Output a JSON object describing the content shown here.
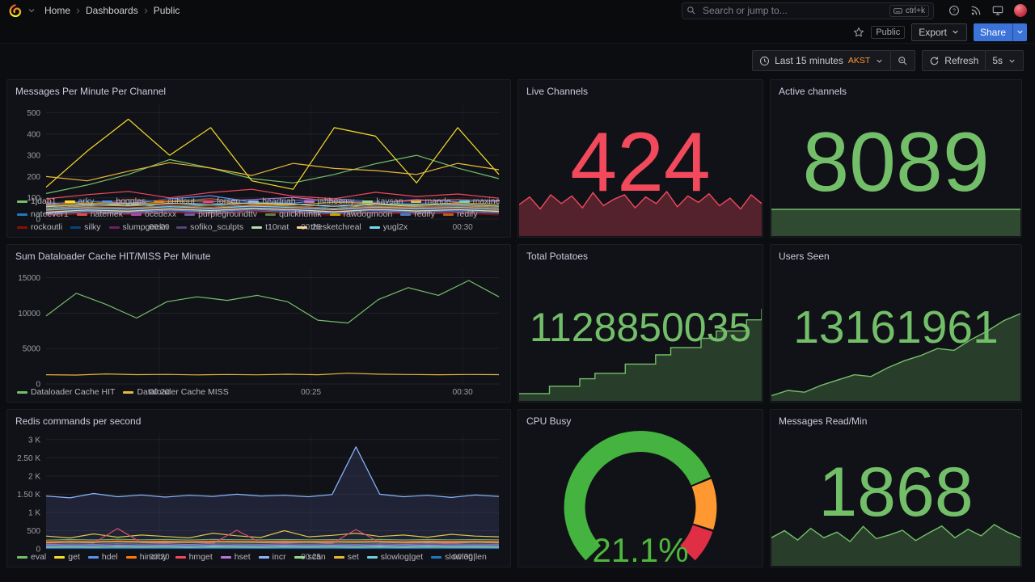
{
  "nav": {
    "breadcrumb": [
      "Home",
      "Dashboards",
      "Public"
    ],
    "search_placeholder": "Search or jump to...",
    "search_shortcut": "ctrl+k"
  },
  "subnav": {
    "tag": "Public",
    "export_label": "Export",
    "share_label": "Share"
  },
  "toolbar": {
    "time_range": "Last 15 minutes",
    "timezone": "AKST",
    "refresh_label": "Refresh",
    "interval": "5s"
  },
  "colors": {
    "stat_red": "#F2495C",
    "stat_green": "#73BF69",
    "gauge_green": "#4EB73C",
    "share_blue": "#3b73d9"
  },
  "chart_data": [
    {
      "id": "messages-per-minute",
      "type": "line",
      "title": "Messages Per Minute Per Channel",
      "ylim": [
        0,
        540
      ],
      "legend": "bottom",
      "y_ticks": [
        {
          "v": 0,
          "label": "0"
        },
        {
          "v": 100,
          "label": "100"
        },
        {
          "v": 200,
          "label": "200"
        },
        {
          "v": 300,
          "label": "300"
        },
        {
          "v": 400,
          "label": "400"
        },
        {
          "v": 500,
          "label": "500"
        }
      ],
      "x_ticks": [
        {
          "pos": 0.25,
          "label": "00:20"
        },
        {
          "pos": 0.585,
          "label": "00:25"
        },
        {
          "pos": 0.92,
          "label": "00:30"
        }
      ],
      "series": [
        {
          "name": "1jdab1",
          "color": "#73BF69",
          "values": [
            120,
            160,
            210,
            280,
            240,
            190,
            170,
            210,
            260,
            300,
            240,
            190
          ]
        },
        {
          "name": "arky",
          "color": "#FADE2A",
          "values": [
            150,
            320,
            470,
            300,
            430,
            180,
            140,
            430,
            390,
            170,
            430,
            210
          ]
        },
        {
          "name": "boggles",
          "color": "#5794F2",
          "values": [
            60,
            85,
            70,
            95,
            110,
            80,
            75,
            95,
            82,
            70,
            92,
            84
          ]
        },
        {
          "name": "cuhlout",
          "color": "#FF780A",
          "values": [
            40,
            55,
            45,
            62,
            50,
            66,
            54,
            44,
            60,
            50,
            56,
            46
          ]
        },
        {
          "name": "forsen",
          "color": "#F2495C",
          "values": [
            95,
            115,
            130,
            100,
            125,
            140,
            108,
            96,
            126,
            106,
            118,
            98
          ]
        },
        {
          "name": "heartriah",
          "color": "#8AB8FF",
          "values": [
            30,
            42,
            35,
            46,
            52,
            40,
            34,
            46,
            40,
            31,
            44,
            37
          ]
        },
        {
          "name": "jahheemy",
          "color": "#B877D9",
          "values": [
            70,
            86,
            74,
            96,
            82,
            92,
            102,
            84,
            76,
            92,
            80,
            88
          ]
        },
        {
          "name": "kaysan",
          "color": "#96D98D",
          "values": [
            50,
            62,
            72,
            54,
            66,
            76,
            60,
            50,
            70,
            58,
            64,
            54
          ]
        },
        {
          "name": "mande",
          "color": "#EAB839",
          "values": [
            200,
            180,
            225,
            265,
            240,
            205,
            262,
            238,
            228,
            210,
            262,
            232
          ]
        },
        {
          "name": "maxine",
          "color": "#6ED0E0",
          "values": [
            25,
            36,
            30,
            41,
            34,
            46,
            38,
            29,
            43,
            34,
            40,
            32
          ]
        },
        {
          "name": "nateever1",
          "color": "#1F78C1",
          "values": [
            45,
            56,
            50,
            61,
            66,
            54,
            49,
            61,
            52,
            47,
            59,
            53
          ]
        },
        {
          "name": "natemek",
          "color": "#E24D42",
          "values": [
            80,
            70,
            92,
            84,
            96,
            74,
            88,
            94,
            78,
            86,
            92,
            81
          ]
        },
        {
          "name": "ocedexx",
          "color": "#BA43A9",
          "values": [
            20,
            31,
            25,
            36,
            28,
            39,
            31,
            24,
            34,
            27,
            33,
            26
          ]
        },
        {
          "name": "purplegroundttv",
          "color": "#705DA0",
          "values": [
            55,
            66,
            60,
            71,
            76,
            61,
            57,
            69,
            62,
            56,
            67,
            59
          ]
        },
        {
          "name": "quickhuntik",
          "color": "#508642",
          "values": [
            35,
            46,
            40,
            51,
            44,
            53,
            47,
            37,
            49,
            41,
            48,
            39
          ]
        },
        {
          "name": "rawdogmoon",
          "color": "#CCA300",
          "values": [
            65,
            76,
            70,
            81,
            86,
            71,
            67,
            79,
            72,
            66,
            77,
            69
          ]
        },
        {
          "name": "redify",
          "color": "#447EBC",
          "values": [
            28,
            39,
            33,
            44,
            36,
            47,
            40,
            30,
            42,
            34,
            40,
            33
          ]
        },
        {
          "name": "redify",
          "color": "#C15C17",
          "values": [
            48,
            59,
            53,
            64,
            56,
            67,
            60,
            50,
            62,
            54,
            61,
            51
          ]
        },
        {
          "name": "rockoutli",
          "color": "#890F02",
          "values": [
            15,
            26,
            20,
            31,
            22,
            33,
            27,
            17,
            29,
            22,
            28,
            19
          ]
        },
        {
          "name": "silky",
          "color": "#0A437C",
          "values": [
            75,
            86,
            80,
            93,
            88,
            77,
            85,
            91,
            81,
            74,
            87,
            79
          ]
        },
        {
          "name": "slumpgeekn",
          "color": "#6D1F62",
          "values": [
            38,
            49,
            43,
            54,
            46,
            57,
            50,
            40,
            52,
            44,
            51,
            43
          ]
        },
        {
          "name": "sofiko_sculpts",
          "color": "#584477",
          "values": [
            22,
            33,
            27,
            38,
            30,
            41,
            34,
            24,
            36,
            28,
            35,
            27
          ]
        },
        {
          "name": "t10nat",
          "color": "#B7DBAB",
          "values": [
            58,
            69,
            63,
            74,
            66,
            77,
            70,
            60,
            72,
            64,
            71,
            61
          ]
        },
        {
          "name": "thesketchreal",
          "color": "#F4D598",
          "values": [
            32,
            43,
            37,
            48,
            40,
            51,
            44,
            34,
            46,
            38,
            45,
            36
          ]
        },
        {
          "name": "yugl2x",
          "color": "#70DBED",
          "values": [
            42,
            53,
            47,
            58,
            50,
            61,
            54,
            44,
            56,
            48,
            55,
            45
          ]
        }
      ]
    },
    {
      "id": "live-channels",
      "type": "stat",
      "title": "Live Channels",
      "value": "424",
      "color": "#F2495C",
      "sparkline": {
        "values": [
          58,
          72,
          50,
          76,
          60,
          74,
          52,
          80,
          56,
          68,
          76,
          52,
          72,
          60,
          82,
          54,
          74,
          62,
          78,
          56,
          70,
          50,
          76,
          60
        ],
        "line": "#F2495C",
        "fill": "rgba(242,73,92,0.30)",
        "height_frac": 0.3
      }
    },
    {
      "id": "active-channels",
      "type": "stat",
      "title": "Active channels",
      "value": "8089",
      "color": "#73BF69",
      "sparkline": {
        "values": [
          1,
          1,
          1,
          1,
          1,
          1,
          1,
          1,
          1,
          1,
          1,
          1
        ],
        "line": "#73BF69",
        "fill": "rgba(115,191,105,0.32)",
        "height_frac": 0.19
      }
    },
    {
      "id": "dataloader-cache",
      "type": "line",
      "title": "Sum Dataloader Cache HIT/MISS Per Minute",
      "ylim": [
        0,
        16200
      ],
      "legend": "bottom",
      "y_ticks": [
        {
          "v": 0,
          "label": "0"
        },
        {
          "v": 5000,
          "label": "5000"
        },
        {
          "v": 10000,
          "label": "10000"
        },
        {
          "v": 15000,
          "label": "15000"
        }
      ],
      "x_ticks": [
        {
          "pos": 0.25,
          "label": "00:20"
        },
        {
          "pos": 0.585,
          "label": "00:25"
        },
        {
          "pos": 0.92,
          "label": "00:30"
        }
      ],
      "series": [
        {
          "name": "Dataloader Cache HIT",
          "color": "#73BF69",
          "values": [
            9600,
            12800,
            11200,
            9300,
            11600,
            12300,
            11800,
            12500,
            11600,
            9000,
            8600,
            11900,
            13600,
            12500,
            14600,
            12300
          ]
        },
        {
          "name": "Dataloader Cache MISS",
          "color": "#EAB839",
          "values": [
            1300,
            1260,
            1420,
            1310,
            1350,
            1280,
            1330,
            1290,
            1370,
            1300,
            1520,
            1380,
            1330,
            1300,
            1340,
            1310
          ]
        }
      ]
    },
    {
      "id": "total-potatoes",
      "type": "stat",
      "title": "Total Potatoes",
      "value": "1128850035",
      "color": "#73BF69",
      "sparkline": {
        "values": [
          8,
          8,
          16,
          16,
          24,
          30,
          30,
          40,
          40,
          50,
          58,
          58,
          68,
          76,
          76,
          88,
          100
        ],
        "step": true,
        "line": "#73BF69",
        "fill": "rgba(115,191,105,0.25)",
        "height_frac": 0.6
      }
    },
    {
      "id": "users-seen",
      "type": "stat",
      "title": "Users Seen",
      "value": "13161961",
      "color": "#73BF69",
      "sparkline": {
        "values": [
          6,
          12,
          10,
          18,
          24,
          30,
          28,
          38,
          46,
          52,
          60,
          58,
          70,
          80,
          92,
          100
        ],
        "line": "#73BF69",
        "fill": "rgba(115,191,105,0.25)",
        "height_frac": 0.57
      }
    },
    {
      "id": "redis-commands",
      "type": "line",
      "title": "Redis commands per second",
      "ylim": [
        0,
        3150
      ],
      "legend": "bottom",
      "y_ticks": [
        {
          "v": 0,
          "label": "0"
        },
        {
          "v": 500,
          "label": "500"
        },
        {
          "v": 1000,
          "label": "1 K"
        },
        {
          "v": 1500,
          "label": "1.50 K"
        },
        {
          "v": 2000,
          "label": "2 K"
        },
        {
          "v": 2500,
          "label": "2.50 K"
        },
        {
          "v": 3000,
          "label": "3 K"
        }
      ],
      "x_ticks": [
        {
          "pos": 0.25,
          "label": "00:20"
        },
        {
          "pos": 0.585,
          "label": "00:25"
        },
        {
          "pos": 0.92,
          "label": "00:30"
        }
      ],
      "series": [
        {
          "name": "eval",
          "color": "#73BF69",
          "values": [
            240,
            255,
            245,
            262,
            248,
            258,
            242,
            260,
            250,
            246,
            256,
            248,
            252,
            246,
            258,
            244,
            256,
            248,
            252,
            246
          ]
        },
        {
          "name": "get",
          "color": "#FADE2A",
          "values": [
            350,
            300,
            410,
            320,
            380,
            340,
            300,
            430,
            360,
            310,
            500,
            330,
            370,
            430,
            340,
            380,
            320,
            400,
            350,
            330
          ]
        },
        {
          "name": "hdel",
          "color": "#5794F2",
          "values": [
            120,
            132,
            125,
            140,
            128,
            136,
            122,
            138,
            130,
            126,
            134,
            128,
            132,
            126,
            138,
            124,
            136,
            128,
            130,
            126
          ]
        },
        {
          "name": "hincrby",
          "color": "#FF780A",
          "values": [
            200,
            212,
            205,
            220,
            208,
            216,
            202,
            218,
            210,
            206,
            214,
            208,
            212,
            206,
            218,
            204,
            216,
            208,
            210,
            206
          ]
        },
        {
          "name": "hmget",
          "color": "#F2495C",
          "values": [
            150,
            180,
            160,
            560,
            170,
            160,
            180,
            150,
            510,
            170,
            160,
            180,
            150,
            530,
            180,
            160,
            170,
            150,
            180,
            160
          ]
        },
        {
          "name": "hset",
          "color": "#B877D9",
          "values": [
            90,
            96,
            92,
            102,
            94,
            98,
            90,
            102,
            96,
            92,
            100,
            94,
            98,
            92,
            102,
            90,
            100,
            94,
            96,
            92
          ]
        },
        {
          "name": "incr",
          "color": "#8AB8FF",
          "fill": "rgba(93,102,173,0.20)",
          "values": [
            1450,
            1400,
            1520,
            1430,
            1480,
            1420,
            1470,
            1440,
            1500,
            1450,
            1470,
            1430,
            1490,
            2800,
            1500,
            1430,
            1470,
            1410,
            1480,
            1440
          ]
        },
        {
          "name": "scan",
          "color": "#96D98D",
          "values": [
            60,
            66,
            62,
            70,
            64,
            68,
            60,
            72,
            66,
            62,
            70,
            64,
            68,
            62,
            72,
            60,
            70,
            64,
            66,
            62
          ]
        },
        {
          "name": "set",
          "color": "#EAB839",
          "values": [
            170,
            182,
            175,
            190,
            178,
            186,
            172,
            188,
            180,
            176,
            184,
            178,
            182,
            176,
            188,
            174,
            186,
            178,
            180,
            176
          ]
        },
        {
          "name": "slowlog|get",
          "color": "#6ED0E0",
          "values": [
            30,
            36,
            32,
            40,
            34,
            38,
            30,
            42,
            36,
            32,
            40,
            34,
            38,
            32,
            42,
            30,
            40,
            34,
            36,
            32
          ]
        },
        {
          "name": "slowlog|len",
          "color": "#1F78C1",
          "values": [
            15,
            18,
            16,
            20,
            17,
            19,
            15,
            21,
            18,
            16,
            20,
            17,
            19,
            16,
            21,
            15,
            20,
            17,
            18,
            16
          ]
        }
      ]
    },
    {
      "id": "cpu-busy",
      "type": "gauge",
      "title": "CPU Busy",
      "value": "21.1%",
      "value_color": "#4EB73C",
      "segments": [
        {
          "frac": 0.75,
          "color": "#44B340"
        },
        {
          "frac": 0.15,
          "color": "#FF9830"
        },
        {
          "frac": 0.1,
          "color": "#E02F44"
        }
      ]
    },
    {
      "id": "messages-read",
      "type": "stat",
      "title": "Messages Read/Min",
      "value": "1868",
      "color": "#73BF69",
      "sparkline": {
        "values": [
          60,
          75,
          55,
          80,
          60,
          72,
          52,
          84,
          58,
          66,
          76,
          54,
          70,
          85,
          60,
          78,
          64,
          88,
          72,
          60
        ],
        "line": "#73BF69",
        "fill": "rgba(115,191,105,0.25)",
        "height_frac": 0.28
      }
    }
  ]
}
